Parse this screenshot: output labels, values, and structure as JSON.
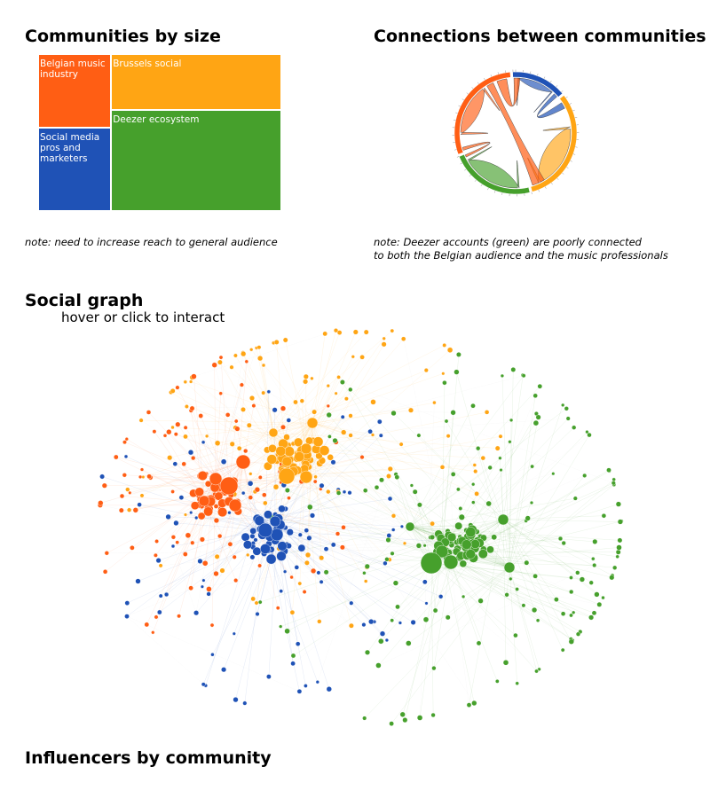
{
  "sections": {
    "treemap_title": "Communities by size",
    "chord_title": "Connections between communities",
    "graph_title": "Social graph",
    "graph_subtitle": "hover or click to interact",
    "influencers_title": "Influencers by community"
  },
  "notes": {
    "treemap_note": "note: need to increase reach to general audience",
    "chord_note": "note: Deezer accounts (green) are poorly connected\nto both the Belgian audience and the music professionals"
  },
  "colors": {
    "belgian_music": "#ff5e14",
    "brussels_social": "#ffa514",
    "social_media": "#1f52b6",
    "deezer": "#46a02c"
  },
  "chart_data": [
    {
      "type": "treemap",
      "title": "Communities by size",
      "nodes": [
        {
          "label": "Belgian music industry",
          "value": 14,
          "color": "#ff5e14"
        },
        {
          "label": "Brussels social",
          "value": 25,
          "color": "#ffa514"
        },
        {
          "label": "Social media pros and marketers",
          "value": 16,
          "color": "#1f52b6"
        },
        {
          "label": "Deezer ecosystem",
          "value": 45,
          "color": "#46a02c"
        }
      ]
    },
    {
      "type": "chord",
      "title": "Connections between communities",
      "groups": [
        {
          "color": "#1f52b6",
          "value": 15
        },
        {
          "color": "#ffa514",
          "value": 32
        },
        {
          "color": "#46a02c",
          "value": 23
        },
        {
          "color": "#ff5e14",
          "value": 30
        }
      ],
      "ribbons": [
        {
          "source": 0,
          "target": 0
        },
        {
          "source": 1,
          "target": 1
        },
        {
          "source": 2,
          "target": 2
        },
        {
          "source": 3,
          "target": 3
        },
        {
          "source": 3,
          "target": 0
        },
        {
          "source": 3,
          "target": 1
        },
        {
          "source": 0,
          "target": 1
        },
        {
          "source": 3,
          "target": 2
        }
      ]
    },
    {
      "type": "network",
      "title": "Social graph",
      "communities": [
        {
          "color": "#ff5e14",
          "node_count": 160
        },
        {
          "color": "#ffa514",
          "node_count": 200
        },
        {
          "color": "#1f52b6",
          "node_count": 150
        },
        {
          "color": "#46a02c",
          "node_count": 260
        }
      ]
    }
  ]
}
